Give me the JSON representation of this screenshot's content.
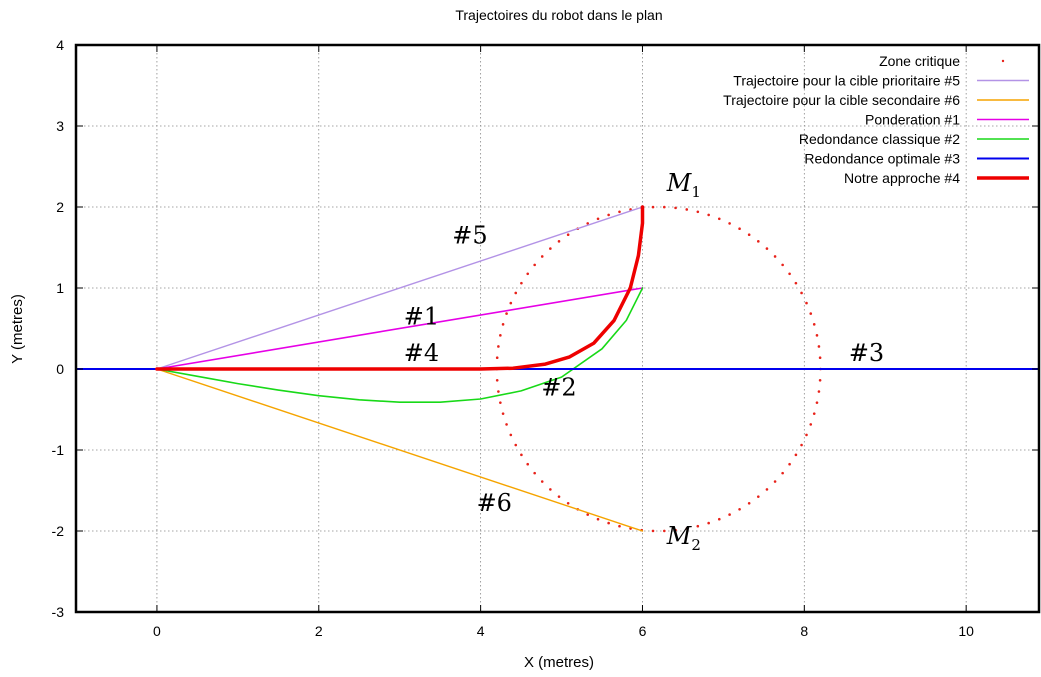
{
  "chart_data": {
    "type": "line",
    "title": "Trajectoires du robot dans le plan",
    "xlabel": "X (metres)",
    "ylabel": "Y (metres)",
    "xlim": [
      -1,
      10.9
    ],
    "ylim": [
      -3,
      4
    ],
    "xticks": [
      0,
      2,
      4,
      6,
      8,
      10
    ],
    "yticks": [
      -3,
      -2,
      -1,
      0,
      1,
      2,
      3,
      4
    ],
    "grid": true,
    "legend_position": "top-right",
    "critical_zone": {
      "name": "Zone critique",
      "color": "#e8221a",
      "center": [
        6.2,
        0
      ],
      "radius": 2.0
    },
    "series": [
      {
        "name": "Trajectoire pour la cible prioritaire #5",
        "color": "#b393e6",
        "width": 1.4,
        "points": [
          [
            0,
            0
          ],
          [
            6,
            2
          ]
        ]
      },
      {
        "name": "Trajectoire pour la cible secondaire #6",
        "color": "#f5a400",
        "width": 1.4,
        "points": [
          [
            0,
            0
          ],
          [
            6,
            -2
          ]
        ]
      },
      {
        "name": "Ponderation  #1",
        "color": "#e600e6",
        "width": 1.6,
        "points": [
          [
            0,
            0
          ],
          [
            6,
            1
          ]
        ]
      },
      {
        "name": "Redondance classique  #2",
        "color": "#18d918",
        "width": 1.6,
        "points": [
          [
            0,
            0
          ],
          [
            0.5,
            -0.09
          ],
          [
            1,
            -0.18
          ],
          [
            1.5,
            -0.26
          ],
          [
            2,
            -0.33
          ],
          [
            2.5,
            -0.38
          ],
          [
            3,
            -0.41
          ],
          [
            3.5,
            -0.41
          ],
          [
            4,
            -0.37
          ],
          [
            4.5,
            -0.27
          ],
          [
            5,
            -0.1
          ],
          [
            5.5,
            0.25
          ],
          [
            5.8,
            0.6
          ],
          [
            6,
            1
          ]
        ]
      },
      {
        "name": "Redondance optimale  #3",
        "color": "#0000ee",
        "width": 2,
        "points": [
          [
            -1,
            0
          ],
          [
            10.9,
            0
          ]
        ]
      },
      {
        "name": "Notre approche  #4",
        "color": "#ee0000",
        "width": 3.5,
        "points": [
          [
            0,
            0
          ],
          [
            4,
            0
          ],
          [
            4.4,
            0.01
          ],
          [
            4.8,
            0.06
          ],
          [
            5.1,
            0.15
          ],
          [
            5.4,
            0.32
          ],
          [
            5.65,
            0.6
          ],
          [
            5.85,
            1.0
          ],
          [
            5.95,
            1.4
          ],
          [
            6,
            1.8
          ],
          [
            6,
            2
          ]
        ]
      }
    ],
    "annotations": [
      {
        "text": "#5",
        "x": 3.65,
        "y": 1.55
      },
      {
        "text": "#1",
        "x": 3.05,
        "y": 0.55
      },
      {
        "text": "#4",
        "x": 3.05,
        "y": 0.1
      },
      {
        "text": "#2",
        "x": 4.75,
        "y": -0.33
      },
      {
        "text": "#3",
        "x": 8.55,
        "y": 0.1
      },
      {
        "text": "#6",
        "x": 3.95,
        "y": -1.75
      },
      {
        "text": "M",
        "sub": "1",
        "x": 6.3,
        "y": 2.2
      },
      {
        "text": "M",
        "sub": "2",
        "x": 6.3,
        "y": -2.16
      }
    ]
  }
}
